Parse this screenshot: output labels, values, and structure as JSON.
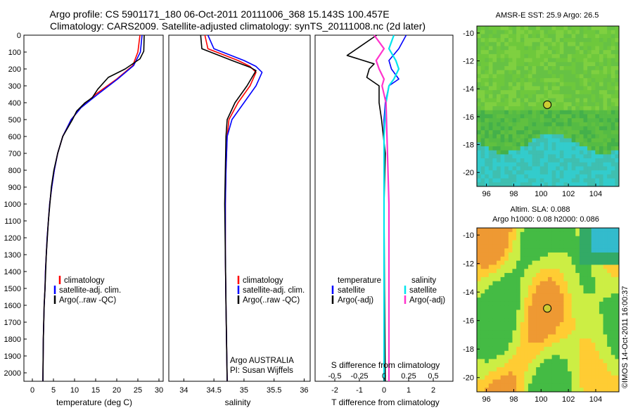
{
  "header": {
    "line1": "Argo profile: CS 5901171_180 06-Oct-2011 20111006_368 15.143S 100.457E",
    "line2": "Climatology: CARS2009. Satellite-adjusted climatology: synTS_20111008.nc (2d later)"
  },
  "colors": {
    "climatology": "#ff0000",
    "satellite": "#0000ff",
    "argo": "#000000",
    "sal_satellite": "#00e5ee",
    "sal_argo": "#ff33cc"
  },
  "panels": {
    "temperature": {
      "xlabel": "temperature (deg C)",
      "xticks": [
        "0",
        "5",
        "10",
        "15",
        "20",
        "25",
        "30"
      ],
      "legend": [
        "climatology",
        "satellite-adj. clim.",
        "Argo(..raw -QC)"
      ]
    },
    "salinity": {
      "xlabel": "salinity",
      "xticks": [
        "34",
        "34.5",
        "35",
        "35.5",
        "36"
      ],
      "legend": [
        "climatology",
        "satellite-adj. clim.",
        "Argo(..raw -QC)"
      ],
      "note1": "Argo AUSTRALIA",
      "note2": "PI: Susan Wijffels"
    },
    "difference": {
      "xlabel_top": "S difference from climatology",
      "xlabel_bottom": "T difference from climatology",
      "xticks_t": [
        "-2",
        "-1",
        "0",
        "1",
        "2"
      ],
      "xticks_s": [
        "-0.5",
        "-0.25",
        "0",
        "0.25",
        "0.5"
      ],
      "legend_head_t": "temperature",
      "legend_head_s": "salinity",
      "legend_t": [
        "satellite",
        "Argo(-adj)"
      ],
      "legend_s": [
        "satellite",
        "Argo(-adj)"
      ]
    },
    "yticks": [
      "0",
      "100",
      "200",
      "300",
      "400",
      "500",
      "600",
      "700",
      "800",
      "900",
      "1000",
      "1100",
      "1200",
      "1300",
      "1400",
      "1500",
      "1600",
      "1700",
      "1800",
      "1900",
      "2000"
    ],
    "maps": {
      "sst_title": "AMSR-E SST: 25.9 Argo: 26.5",
      "sla_title1": "Altim. SLA: 0.088",
      "sla_title2": "Argo h1000: 0.08 h2000: 0.086",
      "xticks": [
        "96",
        "98",
        "100",
        "102",
        "104"
      ],
      "yticks": [
        "-10",
        "-12",
        "-14",
        "-16",
        "-18",
        "-20"
      ],
      "credit": "©IMOS 14-Oct-2011 16:00:37"
    }
  },
  "chart_data": [
    {
      "type": "line",
      "title": "",
      "xlabel": "temperature (deg C)",
      "ylabel": "",
      "xlim": [
        -2,
        31
      ],
      "ylim": [
        2050,
        0
      ],
      "series": [
        {
          "name": "climatology",
          "color": "#ff0000",
          "x": [
            25.5,
            25.0,
            23.8,
            20.0,
            15.0,
            11.5,
            9.2,
            7.2,
            6.0,
            5.2,
            4.6,
            4.1,
            3.8,
            3.5,
            3.3,
            3.1,
            3.0,
            2.8,
            2.7,
            2.6,
            2.5
          ],
          "y": [
            0,
            100,
            180,
            260,
            350,
            430,
            500,
            600,
            700,
            800,
            900,
            1000,
            1100,
            1200,
            1300,
            1400,
            1500,
            1600,
            1700,
            1800,
            2050
          ]
        },
        {
          "name": "satellite-adj. clim.",
          "color": "#0000ff",
          "x": [
            26.0,
            25.6,
            24.0,
            20.2,
            15.5,
            11.5,
            9.2,
            7.2,
            6.0,
            5.2,
            4.6,
            4.1,
            3.8,
            3.5,
            3.3,
            3.1,
            3.0,
            2.8,
            2.7,
            2.6,
            2.5
          ],
          "y": [
            0,
            100,
            180,
            260,
            350,
            430,
            500,
            600,
            700,
            800,
            900,
            1000,
            1100,
            1200,
            1300,
            1400,
            1500,
            1600,
            1700,
            1800,
            2050
          ]
        },
        {
          "name": "Argo(..raw -QC)",
          "color": "#000000",
          "x": [
            26.5,
            26.4,
            25.5,
            22.0,
            18.0,
            15.5,
            14.2,
            12.5,
            10.5,
            9.5,
            7.2,
            6.0,
            5.1,
            4.5,
            3.8,
            3.3,
            3.0,
            2.8,
            2.7,
            2.6,
            2.5
          ],
          "y": [
            0,
            95,
            140,
            200,
            250,
            320,
            370,
            400,
            450,
            500,
            600,
            700,
            800,
            900,
            1100,
            1300,
            1500,
            1600,
            1700,
            1800,
            2050
          ]
        }
      ]
    },
    {
      "type": "line",
      "title": "",
      "xlabel": "salinity",
      "ylabel": "",
      "xlim": [
        33.75,
        36.1
      ],
      "ylim": [
        2050,
        0
      ],
      "series": [
        {
          "name": "climatology",
          "color": "#ff0000",
          "x": [
            34.35,
            34.4,
            34.9,
            35.1,
            35.2,
            35.1,
            34.9,
            34.75,
            34.72,
            34.7,
            34.69,
            34.69,
            34.7,
            34.72
          ],
          "y": [
            0,
            80,
            150,
            185,
            220,
            300,
            400,
            500,
            600,
            800,
            1000,
            1300,
            1600,
            2050
          ]
        },
        {
          "name": "satellite-adj. clim.",
          "color": "#0000ff",
          "x": [
            34.4,
            34.5,
            35.0,
            35.2,
            35.3,
            35.2,
            35.0,
            34.8,
            34.72,
            34.7,
            34.69,
            34.69,
            34.7,
            34.72
          ],
          "y": [
            0,
            80,
            150,
            185,
            220,
            300,
            400,
            500,
            600,
            800,
            1000,
            1300,
            1600,
            2050
          ]
        },
        {
          "name": "Argo(..raw -QC)",
          "color": "#000000",
          "x": [
            34.28,
            34.3,
            34.8,
            35.1,
            35.2,
            35.05,
            34.85,
            34.72,
            34.7,
            34.69,
            34.68,
            34.69,
            34.7,
            34.72
          ],
          "y": [
            0,
            80,
            150,
            190,
            210,
            300,
            400,
            500,
            600,
            800,
            1000,
            1300,
            1600,
            2050
          ]
        }
      ]
    },
    {
      "type": "line",
      "title": "",
      "xlabel": "T difference from climatology",
      "ylabel": "",
      "xlim": [
        -2.8,
        2.8
      ],
      "ylim": [
        2050,
        0
      ],
      "series": [
        {
          "name": "satellite",
          "color": "#0000ff",
          "x": [
            0.9,
            0.6,
            0.2,
            0.3,
            0.6,
            0.2,
            0.05,
            0.0,
            0.0,
            0.0,
            0.0,
            0.0
          ],
          "y": [
            0,
            80,
            150,
            200,
            260,
            300,
            400,
            500,
            700,
            1000,
            1500,
            2050
          ]
        },
        {
          "name": "Argo(-adj)",
          "color": "#000000",
          "x": [
            -0.3,
            -1.5,
            -0.4,
            -0.6,
            -0.7,
            -0.2,
            -0.2,
            -0.1,
            0.05,
            0.0,
            0.02,
            0.05
          ],
          "y": [
            0,
            120,
            170,
            200,
            250,
            300,
            400,
            500,
            700,
            1000,
            1500,
            2050
          ]
        }
      ]
    },
    {
      "type": "line",
      "title": "",
      "xlabel": "S difference from climatology",
      "ylabel": "",
      "xlim": [
        -0.7,
        0.7
      ],
      "ylim": [
        2050,
        0
      ],
      "series": [
        {
          "name": "satellite",
          "color": "#00e5ee",
          "x": [
            0.1,
            0.05,
            0.12,
            0.15,
            0.1,
            0.05,
            0.02,
            0.0,
            0.0,
            0.0
          ],
          "y": [
            0,
            80,
            150,
            200,
            260,
            300,
            400,
            600,
            1000,
            2050
          ]
        },
        {
          "name": "Argo(-adj)",
          "color": "#ff33cc",
          "x": [
            -0.1,
            0.0,
            -0.08,
            -0.05,
            0.0,
            -0.02,
            0.02,
            0.03,
            0.05,
            0.05
          ],
          "y": [
            0,
            80,
            150,
            200,
            260,
            300,
            400,
            600,
            1000,
            2050
          ]
        }
      ]
    },
    {
      "type": "heatmap",
      "title": "AMSR-E SST: 25.9 Argo: 26.5",
      "xlim": [
        95.3,
        105.7
      ],
      "ylim": [
        -21,
        -9.5
      ],
      "argo_position": {
        "lon": 100.457,
        "lat": -15.143
      }
    },
    {
      "type": "heatmap",
      "title": "Altim. SLA: 0.088 / Argo h1000: 0.08 h2000: 0.086",
      "xlim": [
        95.3,
        105.7
      ],
      "ylim": [
        -21,
        -9.5
      ],
      "argo_position": {
        "lon": 100.457,
        "lat": -15.143
      }
    }
  ]
}
